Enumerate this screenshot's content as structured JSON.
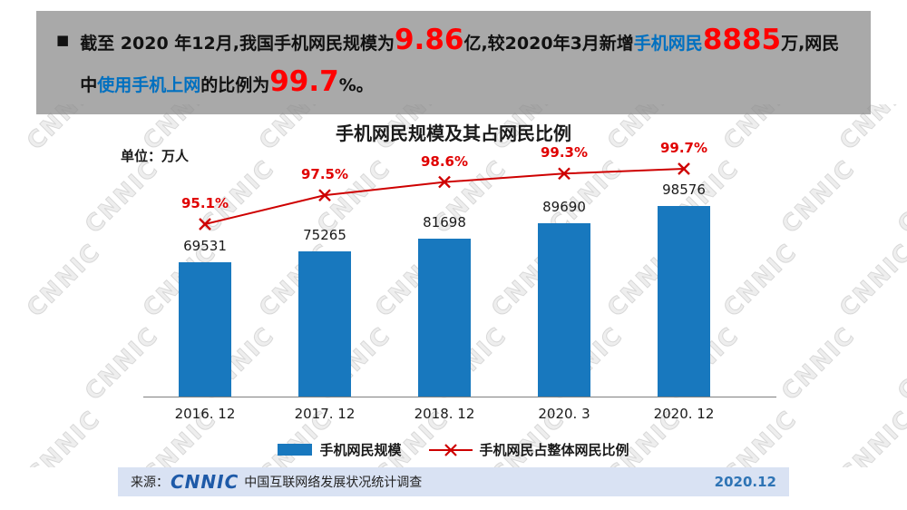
{
  "banner": {
    "bullet": "■",
    "segments": [
      {
        "text": "截至 2020 年12月,我国手机网民规模为",
        "style": "normal"
      },
      {
        "text": "9.86",
        "style": "big-red"
      },
      {
        "text": "亿,较2020年3月新增",
        "style": "normal"
      },
      {
        "text": "手机网民",
        "style": "blue"
      },
      {
        "text": "8885",
        "style": "big-red"
      },
      {
        "text": "万,网民中",
        "style": "normal"
      },
      {
        "text": "使用手机上网",
        "style": "blue"
      },
      {
        "text": "的比例为",
        "style": "normal"
      },
      {
        "text": "99.7",
        "style": "big-red"
      },
      {
        "text": "%。",
        "style": "normal"
      }
    ]
  },
  "chart": {
    "title": "手机网民规模及其占网民比例",
    "unit_label": "单位：万人",
    "watermark_text": "CNNIC"
  },
  "chart_data": {
    "type": "bar",
    "title": "手机网民规模及其占网民比例",
    "ylabel": "万人",
    "xlabel": "",
    "categories": [
      "2016. 12",
      "2017. 12",
      "2018. 12",
      "2020. 3",
      "2020. 12"
    ],
    "series": [
      {
        "name": "手机网民规模",
        "type": "bar",
        "values": [
          69531,
          75265,
          81698,
          89690,
          98576
        ]
      },
      {
        "name": "手机网民占整体网民比例",
        "type": "line",
        "values": [
          95.1,
          97.5,
          98.6,
          99.3,
          99.7
        ],
        "value_suffix": "%"
      }
    ],
    "bar_color": "#1878be",
    "line_color": "#ce0000",
    "legend_position": "bottom",
    "grid": false
  },
  "legend": {
    "bar_label": "手机网民规模",
    "line_label": "手机网民占整体网民比例"
  },
  "footer": {
    "source_prefix": "来源：",
    "logo_text": "CNNIC",
    "source_name": "中国互联网络发展状况统计调查",
    "date": "2020.12"
  }
}
